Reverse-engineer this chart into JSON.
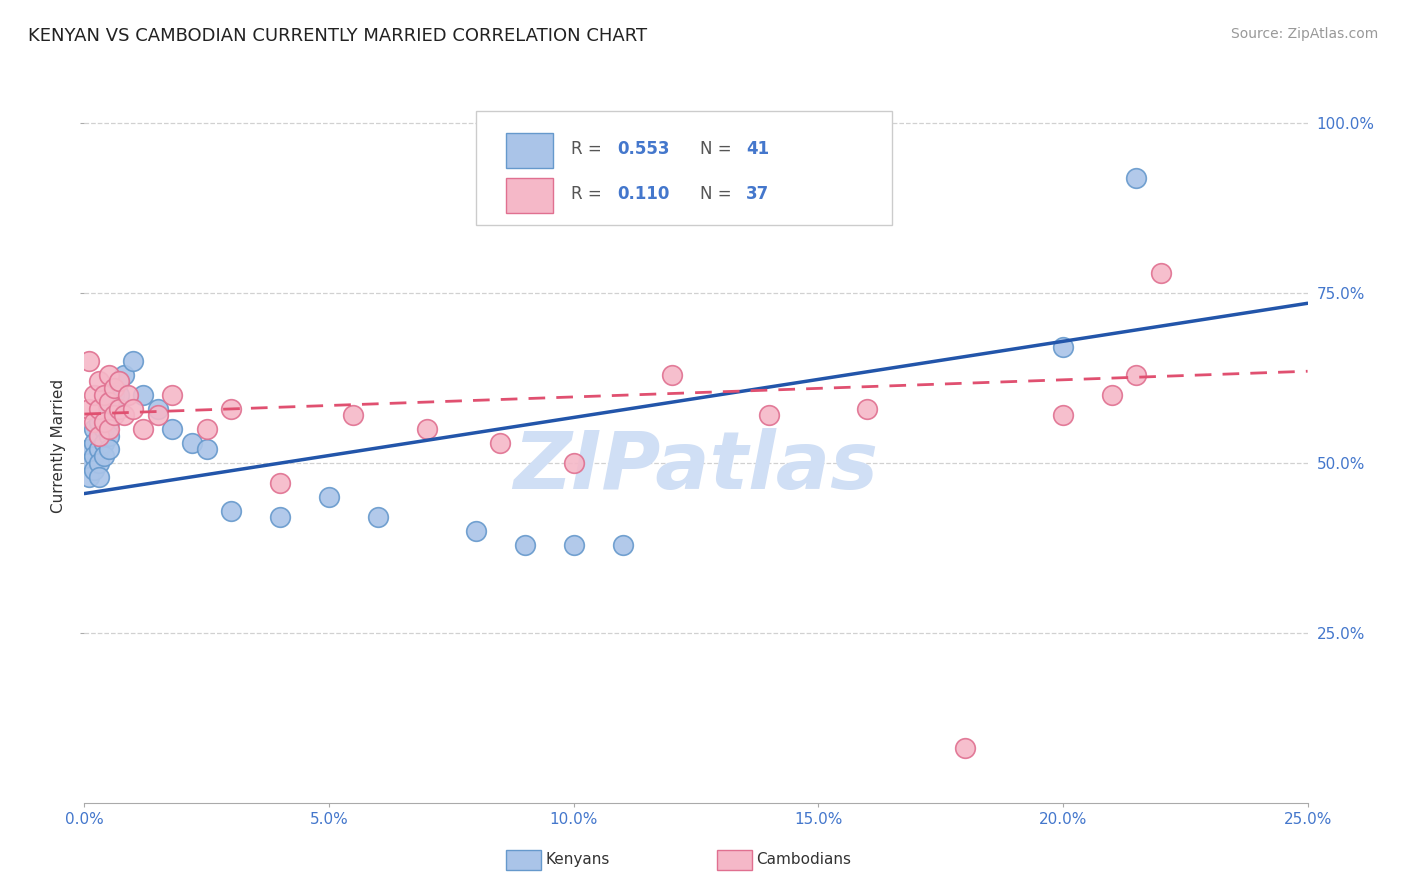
{
  "title": "KENYAN VS CAMBODIAN CURRENTLY MARRIED CORRELATION CHART",
  "source": "Source: ZipAtlas.com",
  "ylabel": "Currently Married",
  "xlim": [
    0.0,
    0.25
  ],
  "ylim": [
    0.0,
    1.05
  ],
  "xticks": [
    0.0,
    0.05,
    0.1,
    0.15,
    0.2,
    0.25
  ],
  "xtick_labels": [
    "0.0%",
    "5.0%",
    "10.0%",
    "15.0%",
    "20.0%",
    "25.0%"
  ],
  "yticks": [
    0.25,
    0.5,
    0.75,
    1.0
  ],
  "ytick_labels": [
    "25.0%",
    "50.0%",
    "75.0%",
    "100.0%"
  ],
  "grid_color": "#cccccc",
  "background_color": "#ffffff",
  "kenyan_color": "#aac4e8",
  "kenyan_edge_color": "#6699cc",
  "cambodian_color": "#f5b8c8",
  "cambodian_edge_color": "#e07090",
  "kenyan_line_color": "#2255aa",
  "cambodian_line_color": "#e05070",
  "tick_color": "#4477cc",
  "R_kenyan": 0.553,
  "N_kenyan": 41,
  "R_cambodian": 0.11,
  "N_cambodian": 37,
  "kenyan_x": [
    0.001,
    0.001,
    0.001,
    0.002,
    0.002,
    0.002,
    0.002,
    0.003,
    0.003,
    0.003,
    0.003,
    0.003,
    0.004,
    0.004,
    0.004,
    0.004,
    0.005,
    0.005,
    0.005,
    0.005,
    0.006,
    0.006,
    0.007,
    0.007,
    0.008,
    0.01,
    0.012,
    0.015,
    0.018,
    0.022,
    0.025,
    0.03,
    0.04,
    0.05,
    0.06,
    0.08,
    0.09,
    0.1,
    0.11,
    0.2,
    0.215
  ],
  "kenyan_y": [
    0.52,
    0.5,
    0.48,
    0.55,
    0.53,
    0.51,
    0.49,
    0.56,
    0.54,
    0.52,
    0.5,
    0.48,
    0.57,
    0.55,
    0.53,
    0.51,
    0.58,
    0.56,
    0.54,
    0.52,
    0.6,
    0.58,
    0.62,
    0.6,
    0.63,
    0.65,
    0.6,
    0.58,
    0.55,
    0.53,
    0.52,
    0.43,
    0.42,
    0.45,
    0.42,
    0.4,
    0.38,
    0.38,
    0.38,
    0.67,
    0.92
  ],
  "cambodian_x": [
    0.001,
    0.001,
    0.002,
    0.002,
    0.003,
    0.003,
    0.003,
    0.004,
    0.004,
    0.005,
    0.005,
    0.005,
    0.006,
    0.006,
    0.007,
    0.007,
    0.008,
    0.009,
    0.01,
    0.012,
    0.015,
    0.018,
    0.025,
    0.03,
    0.04,
    0.055,
    0.07,
    0.085,
    0.1,
    0.12,
    0.14,
    0.16,
    0.18,
    0.2,
    0.21,
    0.215,
    0.22
  ],
  "cambodian_y": [
    0.65,
    0.58,
    0.6,
    0.56,
    0.62,
    0.58,
    0.54,
    0.6,
    0.56,
    0.63,
    0.59,
    0.55,
    0.61,
    0.57,
    0.62,
    0.58,
    0.57,
    0.6,
    0.58,
    0.55,
    0.57,
    0.6,
    0.55,
    0.58,
    0.47,
    0.57,
    0.55,
    0.53,
    0.5,
    0.63,
    0.57,
    0.58,
    0.08,
    0.57,
    0.6,
    0.63,
    0.78
  ],
  "watermark": "ZIPatlas",
  "watermark_color": "#d0dff5",
  "title_fontsize": 13,
  "axis_label_fontsize": 11,
  "tick_fontsize": 11,
  "legend_fontsize": 12,
  "source_fontsize": 10
}
